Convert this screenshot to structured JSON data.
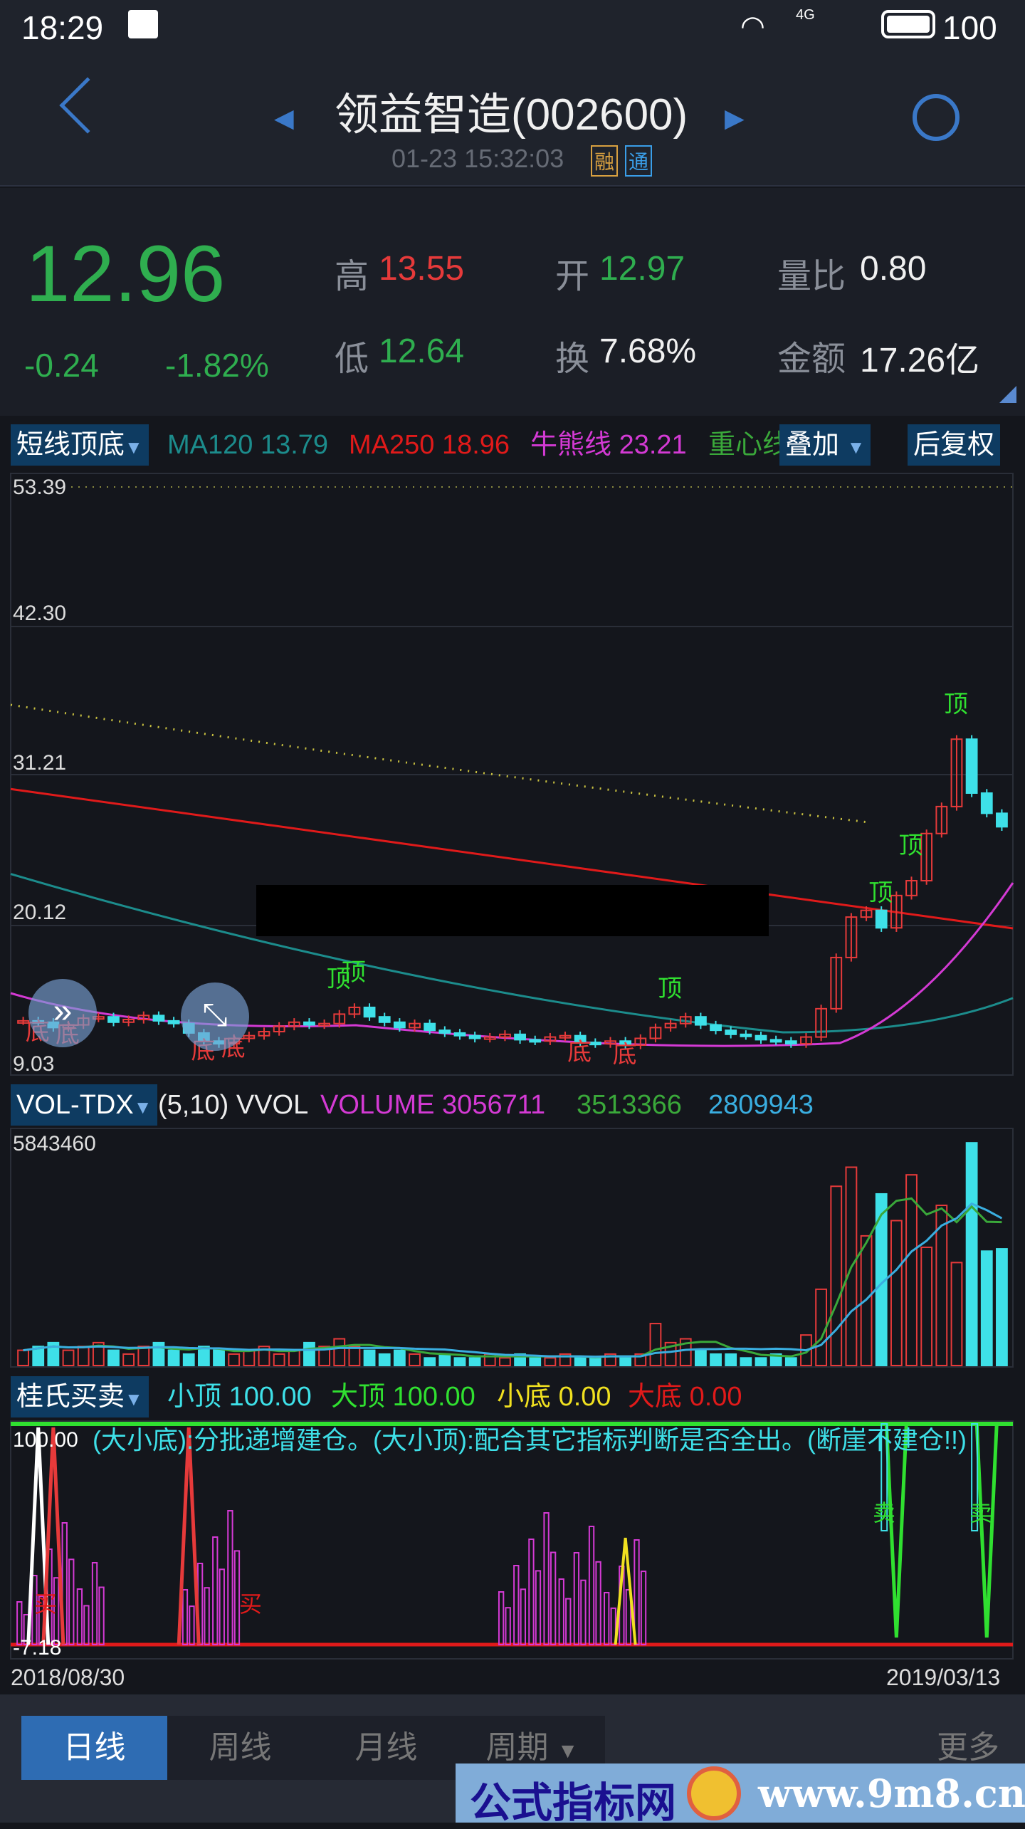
{
  "status": {
    "time": "18:29",
    "network": "4G",
    "battery": "100"
  },
  "header": {
    "title": "领益智造(002600)",
    "datetime": "01-23 15:32:03",
    "badge_rong": "融",
    "badge_tong": "通"
  },
  "quote": {
    "price": "12.96",
    "change": "-0.24",
    "change_pct": "-1.82%",
    "high_label": "高",
    "high": "13.55",
    "open_label": "开",
    "open": "12.97",
    "ratio_label": "量比",
    "ratio": "0.80",
    "low_label": "低",
    "low": "12.64",
    "turnover_label": "换",
    "turnover": "7.68%",
    "amount_label": "金额",
    "amount": "17.26亿"
  },
  "main_chart": {
    "indicator": "短线顶底",
    "ma120_label": "MA120",
    "ma120": "13.79",
    "ma250_label": "MA250",
    "ma250": "18.96",
    "bull_label": "牛熊线",
    "bull": "23.21",
    "center_label": "重心线",
    "overlay": "叠加",
    "adjust": "后复权",
    "y_ticks": [
      "53.39",
      "42.30",
      "31.21",
      "20.12",
      "9.03"
    ],
    "top_label": "顶",
    "bottom_label": "底"
  },
  "vol_chart": {
    "indicator": "VOL-TDX",
    "params": "(5,10) VVOL",
    "volume_label": "VOLUME",
    "volume": "3056711",
    "ma5": "3513366",
    "ma10": "2809943",
    "max": "5843460"
  },
  "sub_chart": {
    "indicator": "桂氏买卖",
    "small_top_label": "小顶",
    "small_top": "100.00",
    "big_top_label": "大顶",
    "big_top": "100.00",
    "small_bottom_label": "小底",
    "small_bottom": "0.00",
    "big_bottom_label": "大底",
    "big_bottom": "0.00",
    "note": "(大小底):分批递增建仓。(大小顶):配合其它指标判断是否全出。(断崖不建仓!!)",
    "top_value": "100.00",
    "bottom_value": "-7.18",
    "buy_label": "买",
    "sell_label": "卖"
  },
  "dates": {
    "start": "2018/08/30",
    "end": "2019/03/13"
  },
  "tabs": {
    "daily": "日线",
    "weekly": "周线",
    "monthly": "月线",
    "period": "周期",
    "more": "更多"
  },
  "watermark": {
    "text": "公式指标网",
    "url": "www.9m8.cn"
  },
  "chart_data": {
    "type": "candlestick",
    "closes": [
      12.1,
      12.0,
      11.6,
      11.8,
      12.3,
      12.4,
      12.0,
      12.2,
      12.5,
      12.1,
      11.9,
      11.2,
      10.6,
      10.4,
      10.8,
      11.0,
      11.3,
      11.7,
      12.0,
      11.8,
      11.9,
      12.6,
      13.1,
      12.4,
      12.0,
      11.6,
      11.9,
      11.4,
      11.2,
      11.0,
      10.8,
      10.9,
      11.1,
      10.7,
      10.6,
      10.9,
      11.0,
      10.5,
      10.4,
      10.6,
      10.3,
      10.8,
      11.6,
      11.9,
      12.4,
      11.8,
      11.4,
      11.1,
      11.0,
      10.7,
      10.6,
      10.4,
      10.9,
      13.0,
      16.8,
      19.8,
      20.3,
      19.0,
      21.4,
      22.5,
      26.0,
      28.0,
      33.0,
      29.0,
      27.5,
      26.5
    ],
    "ma250": [
      29.3,
      18.96
    ],
    "ma120": [
      23.0,
      13.79
    ],
    "volumes_m": [
      0.4,
      0.5,
      0.6,
      0.4,
      0.5,
      0.6,
      0.4,
      0.3,
      0.5,
      0.6,
      0.4,
      0.3,
      0.5,
      0.4,
      0.3,
      0.4,
      0.5,
      0.3,
      0.4,
      0.6,
      0.5,
      0.7,
      0.5,
      0.4,
      0.3,
      0.4,
      0.3,
      0.2,
      0.3,
      0.2,
      0.2,
      0.3,
      0.2,
      0.3,
      0.2,
      0.2,
      0.3,
      0.2,
      0.2,
      0.3,
      0.2,
      0.3,
      1.1,
      0.6,
      0.7,
      0.4,
      0.3,
      0.3,
      0.2,
      0.2,
      0.3,
      0.2,
      0.8,
      2.0,
      4.7,
      5.2,
      3.4,
      4.5,
      3.8,
      5.0,
      3.1,
      4.2,
      2.7,
      5.84,
      3.0,
      3.06
    ],
    "colors": {
      "up": "#e63a3a",
      "down": "#3ee0e8",
      "ma120": "#1c8c8c",
      "ma250": "#e01a1a",
      "bull": "#d43ad4",
      "top": "#30e030"
    }
  }
}
